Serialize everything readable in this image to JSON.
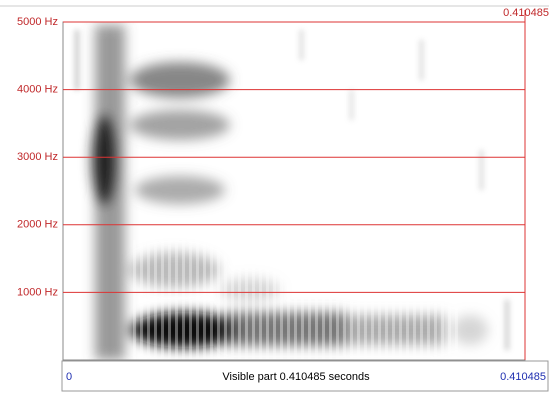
{
  "frequency_labels": [
    "5000 Hz",
    "4000 Hz",
    "3000 Hz",
    "2000 Hz",
    "1000 Hz"
  ],
  "cursor_time": "0.410485",
  "time_start": "0",
  "time_end": "0.410485",
  "status": "Visible part 0.410485 seconds"
}
